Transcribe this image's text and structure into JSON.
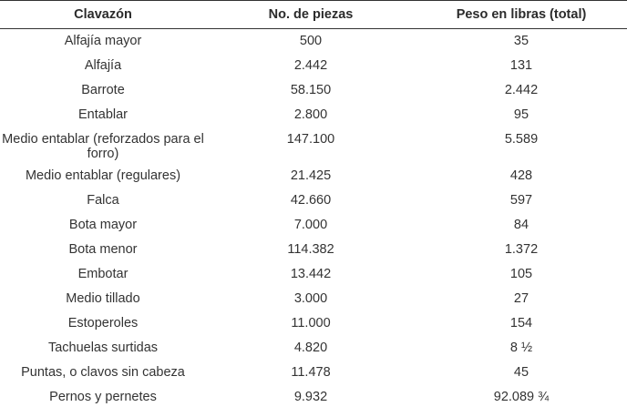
{
  "table": {
    "headers": [
      "Clavazón",
      "No. de piezas",
      "Peso en libras (total)"
    ],
    "rows": [
      [
        "Alfajía mayor",
        "500",
        "35"
      ],
      [
        "Alfajía",
        "2.442",
        "131"
      ],
      [
        "Barrote",
        "58.150",
        "2.442"
      ],
      [
        "Entablar",
        "2.800",
        "95"
      ],
      [
        "Medio entablar (reforzados para el forro)",
        "147.100",
        "5.589"
      ],
      [
        "Medio entablar (regulares)",
        "21.425",
        "428"
      ],
      [
        "Falca",
        "42.660",
        "597"
      ],
      [
        "Bota mayor",
        "7.000",
        "84"
      ],
      [
        "Bota menor",
        "114.382",
        "1.372"
      ],
      [
        "Embotar",
        "13.442",
        "105"
      ],
      [
        "Medio tillado",
        "3.000",
        "27"
      ],
      [
        "Estoperoles",
        "11.000",
        "154"
      ],
      [
        "Tachuelas surtidas",
        "4.820",
        "8 ½"
      ],
      [
        "Puntas, o clavos sin cabeza",
        "11.478",
        "45"
      ],
      [
        "Pernos y pernetes",
        "9.932",
        "92.089 ¾"
      ]
    ]
  }
}
